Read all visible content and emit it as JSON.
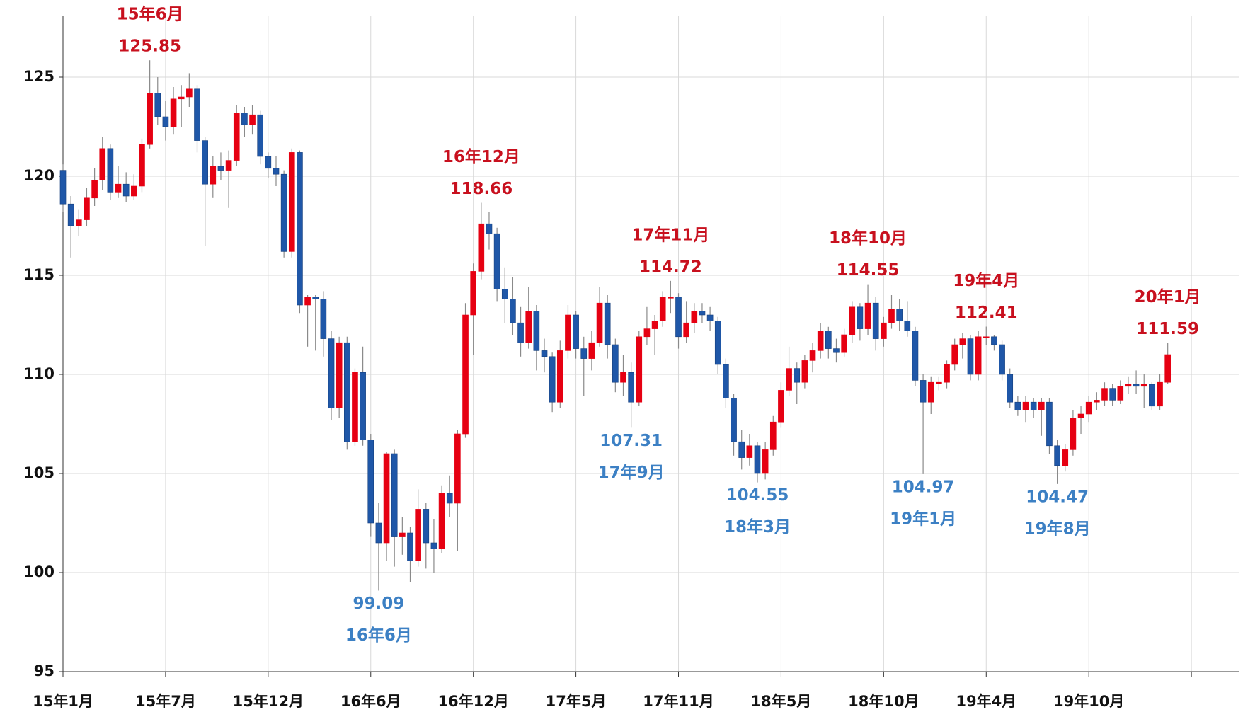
{
  "chart_data": {
    "type": "candlestick",
    "up_color": "#e60012",
    "down_color": "#1f57a8",
    "wick_color": "#8a8a8a",
    "ylim": [
      95,
      128
    ],
    "yticks": [
      95,
      100,
      105,
      110,
      115,
      120,
      125
    ],
    "xlim": [
      0,
      149
    ],
    "xticks": [
      {
        "value": 0,
        "label": "15年1月"
      },
      {
        "value": 13,
        "label": "15年7月"
      },
      {
        "value": 26,
        "label": "15年12月"
      },
      {
        "value": 39,
        "label": "16年6月"
      },
      {
        "value": 52,
        "label": "16年12月"
      },
      {
        "value": 65,
        "label": "17年5月"
      },
      {
        "value": 78,
        "label": "17年11月"
      },
      {
        "value": 91,
        "label": "18年5月"
      },
      {
        "value": 104,
        "label": "18年10月"
      },
      {
        "value": 117,
        "label": "19年4月"
      },
      {
        "value": 130,
        "label": "19年10月"
      },
      {
        "value": 143,
        "label": null
      }
    ],
    "grid": true,
    "ohlc": [
      [
        120.3,
        120.6,
        118.2,
        118.6
      ],
      [
        118.6,
        119.0,
        115.9,
        117.5
      ],
      [
        117.5,
        118.3,
        117.0,
        117.8
      ],
      [
        117.8,
        119.4,
        117.5,
        118.9
      ],
      [
        118.9,
        120.4,
        118.5,
        119.8
      ],
      [
        119.8,
        122.0,
        119.3,
        121.4
      ],
      [
        121.4,
        121.6,
        118.8,
        119.2
      ],
      [
        119.2,
        120.5,
        118.9,
        119.6
      ],
      [
        119.6,
        120.2,
        118.7,
        119.0
      ],
      [
        119.0,
        120.1,
        118.8,
        119.5
      ],
      [
        119.5,
        121.9,
        119.2,
        121.6
      ],
      [
        121.6,
        125.85,
        121.4,
        124.2
      ],
      [
        124.2,
        125.0,
        122.6,
        123.0
      ],
      [
        123.0,
        123.8,
        121.8,
        122.5
      ],
      [
        122.5,
        124.5,
        122.1,
        123.9
      ],
      [
        123.9,
        124.6,
        122.5,
        124.0
      ],
      [
        124.0,
        125.2,
        123.5,
        124.4
      ],
      [
        124.4,
        124.6,
        121.2,
        121.8
      ],
      [
        121.8,
        122.0,
        116.5,
        119.6
      ],
      [
        119.6,
        121.0,
        118.9,
        120.5
      ],
      [
        120.5,
        121.2,
        119.8,
        120.3
      ],
      [
        120.3,
        121.3,
        118.4,
        120.8
      ],
      [
        120.8,
        123.6,
        120.5,
        123.2
      ],
      [
        123.2,
        123.5,
        122.0,
        122.6
      ],
      [
        122.6,
        123.6,
        122.1,
        123.1
      ],
      [
        123.1,
        123.3,
        120.6,
        121.0
      ],
      [
        121.0,
        121.2,
        119.9,
        120.4
      ],
      [
        120.4,
        121.0,
        119.5,
        120.1
      ],
      [
        120.1,
        120.3,
        115.9,
        116.2
      ],
      [
        116.2,
        121.4,
        115.9,
        121.2
      ],
      [
        121.2,
        121.3,
        113.1,
        113.5
      ],
      [
        113.5,
        114.0,
        111.4,
        113.9
      ],
      [
        113.9,
        114.0,
        111.2,
        113.8
      ],
      [
        113.8,
        114.2,
        110.9,
        111.8
      ],
      [
        111.8,
        112.2,
        107.7,
        108.3
      ],
      [
        108.3,
        111.9,
        107.8,
        111.6
      ],
      [
        111.6,
        111.9,
        106.2,
        106.6
      ],
      [
        106.6,
        110.3,
        106.4,
        110.1
      ],
      [
        110.1,
        111.4,
        106.4,
        106.7
      ],
      [
        106.7,
        107.0,
        101.8,
        102.5
      ],
      [
        102.5,
        103.5,
        99.09,
        101.5
      ],
      [
        101.5,
        106.1,
        100.6,
        106.0
      ],
      [
        106.0,
        106.2,
        100.3,
        101.8
      ],
      [
        101.8,
        102.8,
        100.9,
        102.0
      ],
      [
        102.0,
        102.3,
        99.5,
        100.6
      ],
      [
        100.6,
        104.2,
        100.3,
        103.2
      ],
      [
        103.2,
        103.5,
        100.2,
        101.5
      ],
      [
        101.5,
        102.7,
        100.0,
        101.2
      ],
      [
        101.2,
        104.4,
        101.0,
        104.0
      ],
      [
        104.0,
        104.9,
        102.8,
        103.5
      ],
      [
        103.5,
        107.2,
        101.1,
        107.0
      ],
      [
        107.0,
        113.6,
        106.8,
        113.0
      ],
      [
        113.0,
        115.6,
        111.0,
        115.2
      ],
      [
        115.2,
        118.66,
        114.8,
        117.6
      ],
      [
        117.6,
        118.2,
        116.3,
        117.1
      ],
      [
        117.1,
        117.4,
        113.7,
        114.3
      ],
      [
        114.3,
        115.4,
        112.6,
        113.8
      ],
      [
        113.8,
        114.9,
        112.0,
        112.6
      ],
      [
        112.6,
        113.4,
        110.9,
        111.6
      ],
      [
        111.6,
        114.4,
        111.3,
        113.2
      ],
      [
        113.2,
        113.5,
        110.2,
        111.2
      ],
      [
        111.2,
        111.8,
        110.1,
        110.9
      ],
      [
        110.9,
        111.1,
        108.1,
        108.6
      ],
      [
        108.6,
        111.7,
        108.3,
        111.2
      ],
      [
        111.2,
        113.5,
        110.8,
        113.0
      ],
      [
        113.0,
        113.2,
        110.8,
        111.3
      ],
      [
        111.3,
        111.9,
        108.9,
        110.8
      ],
      [
        110.8,
        112.2,
        110.2,
        111.6
      ],
      [
        111.6,
        114.4,
        111.4,
        113.6
      ],
      [
        113.6,
        114.0,
        110.8,
        111.5
      ],
      [
        111.5,
        111.8,
        109.1,
        109.6
      ],
      [
        109.6,
        111.0,
        108.9,
        110.1
      ],
      [
        110.1,
        110.6,
        107.31,
        108.6
      ],
      [
        108.6,
        112.2,
        108.4,
        111.9
      ],
      [
        111.9,
        113.4,
        111.5,
        112.3
      ],
      [
        112.3,
        113.0,
        111.0,
        112.7
      ],
      [
        112.7,
        114.2,
        112.4,
        113.9
      ],
      [
        113.9,
        114.72,
        113.1,
        113.9
      ],
      [
        113.9,
        114.1,
        111.3,
        111.9
      ],
      [
        111.9,
        113.7,
        111.6,
        112.6
      ],
      [
        112.6,
        113.6,
        112.1,
        113.2
      ],
      [
        113.2,
        113.6,
        112.6,
        113.0
      ],
      [
        113.0,
        113.4,
        112.2,
        112.7
      ],
      [
        112.7,
        112.9,
        110.0,
        110.5
      ],
      [
        110.5,
        110.8,
        108.3,
        108.8
      ],
      [
        108.8,
        109.0,
        105.9,
        106.6
      ],
      [
        106.6,
        107.2,
        105.2,
        105.8
      ],
      [
        105.8,
        107.0,
        105.4,
        106.4
      ],
      [
        106.4,
        106.6,
        104.55,
        105.0
      ],
      [
        105.0,
        106.6,
        104.7,
        106.2
      ],
      [
        106.2,
        107.9,
        105.9,
        107.6
      ],
      [
        107.6,
        109.6,
        107.3,
        109.2
      ],
      [
        109.2,
        111.4,
        108.9,
        110.3
      ],
      [
        110.3,
        110.6,
        108.5,
        109.6
      ],
      [
        109.6,
        111.0,
        109.3,
        110.7
      ],
      [
        110.7,
        111.6,
        110.1,
        111.2
      ],
      [
        111.2,
        112.6,
        110.8,
        112.2
      ],
      [
        112.2,
        112.4,
        110.8,
        111.3
      ],
      [
        111.3,
        111.8,
        110.6,
        111.1
      ],
      [
        111.1,
        112.3,
        110.9,
        112.0
      ],
      [
        112.0,
        113.7,
        111.6,
        113.4
      ],
      [
        113.4,
        113.6,
        111.7,
        112.3
      ],
      [
        112.3,
        114.55,
        112.0,
        113.6
      ],
      [
        113.6,
        113.9,
        111.2,
        111.8
      ],
      [
        111.8,
        112.9,
        111.4,
        112.6
      ],
      [
        112.6,
        114.0,
        112.3,
        113.3
      ],
      [
        113.3,
        113.8,
        112.2,
        112.7
      ],
      [
        112.7,
        113.7,
        111.9,
        112.2
      ],
      [
        112.2,
        112.4,
        109.4,
        109.7
      ],
      [
        109.7,
        110.0,
        104.97,
        108.6
      ],
      [
        108.6,
        109.9,
        108.0,
        109.6
      ],
      [
        109.6,
        109.9,
        109.2,
        109.6
      ],
      [
        109.6,
        110.7,
        109.3,
        110.5
      ],
      [
        110.5,
        111.8,
        110.2,
        111.5
      ],
      [
        111.5,
        112.1,
        110.8,
        111.8
      ],
      [
        111.8,
        112.0,
        109.7,
        110.0
      ],
      [
        110.0,
        112.2,
        109.7,
        111.9
      ],
      [
        111.9,
        112.41,
        111.5,
        111.9
      ],
      [
        111.9,
        112.0,
        111.2,
        111.5
      ],
      [
        111.5,
        111.7,
        109.7,
        110.0
      ],
      [
        110.0,
        110.3,
        108.3,
        108.6
      ],
      [
        108.6,
        108.9,
        107.9,
        108.2
      ],
      [
        108.2,
        108.9,
        107.6,
        108.6
      ],
      [
        108.6,
        108.8,
        107.8,
        108.2
      ],
      [
        108.2,
        108.8,
        106.9,
        108.6
      ],
      [
        108.6,
        108.8,
        106.0,
        106.4
      ],
      [
        106.4,
        106.7,
        104.47,
        105.4
      ],
      [
        105.4,
        106.5,
        105.1,
        106.2
      ],
      [
        106.2,
        108.2,
        105.9,
        107.8
      ],
      [
        107.8,
        108.4,
        107.0,
        108.0
      ],
      [
        108.0,
        108.9,
        107.6,
        108.6
      ],
      [
        108.6,
        109.1,
        108.2,
        108.7
      ],
      [
        108.7,
        109.6,
        108.4,
        109.3
      ],
      [
        109.3,
        109.5,
        108.4,
        108.7
      ],
      [
        108.7,
        109.7,
        108.5,
        109.4
      ],
      [
        109.4,
        109.9,
        109.0,
        109.5
      ],
      [
        109.5,
        110.2,
        109.0,
        109.4
      ],
      [
        109.4,
        110.0,
        108.3,
        109.5
      ],
      [
        109.5,
        109.6,
        108.2,
        108.4
      ],
      [
        108.4,
        110.0,
        108.2,
        109.6
      ],
      [
        109.6,
        111.59,
        109.5,
        111.0
      ]
    ],
    "high_color": "#c8101e",
    "low_color": "#3c80c4",
    "annotations": [
      {
        "date": "15年6月",
        "value": 125.85,
        "index": 11,
        "kind": "high"
      },
      {
        "date": "16年6月",
        "value": 99.09,
        "index": 40,
        "kind": "low"
      },
      {
        "date": "16年12月",
        "value": 118.66,
        "index": 53,
        "kind": "high"
      },
      {
        "date": "17年9月",
        "value": 107.31,
        "index": 72,
        "kind": "low"
      },
      {
        "date": "17年11月",
        "value": 114.72,
        "index": 77,
        "kind": "high"
      },
      {
        "date": "18年3月",
        "value": 104.55,
        "index": 88,
        "kind": "low"
      },
      {
        "date": "18年10月",
        "value": 114.55,
        "index": 102,
        "kind": "high"
      },
      {
        "date": "19年1月",
        "value": 104.97,
        "index": 109,
        "kind": "low"
      },
      {
        "date": "19年4月",
        "value": 112.41,
        "index": 117,
        "kind": "high"
      },
      {
        "date": "19年8月",
        "value": 104.47,
        "index": 126,
        "kind": "low"
      },
      {
        "date": "20年1月",
        "value": 111.59,
        "index": 140,
        "kind": "high"
      }
    ]
  }
}
